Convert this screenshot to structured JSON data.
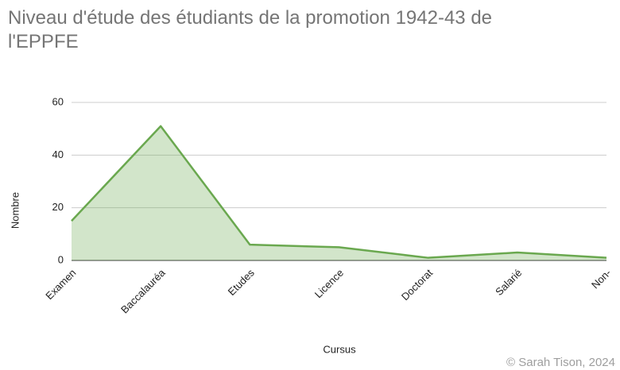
{
  "chart_data": {
    "type": "area",
    "title": "Niveau d'étude des étudiants de la promotion 1942-43 de l'EPPFE",
    "x_label": "Cursus",
    "y_label": "Nombre",
    "footer": "© Sarah Tison, 2024",
    "categories": [
      "Examen",
      "Baccalauréa",
      "Etudes",
      "Licence",
      "Doctorat",
      "Salarié",
      "Non-"
    ],
    "series": [
      {
        "name": "Nombre",
        "color": "#6aa84f",
        "values": [
          15,
          51,
          6,
          5,
          1,
          3,
          1
        ]
      }
    ],
    "ylim": [
      0,
      60
    ],
    "yticks": [
      0,
      20,
      40,
      60
    ],
    "grid": true
  }
}
